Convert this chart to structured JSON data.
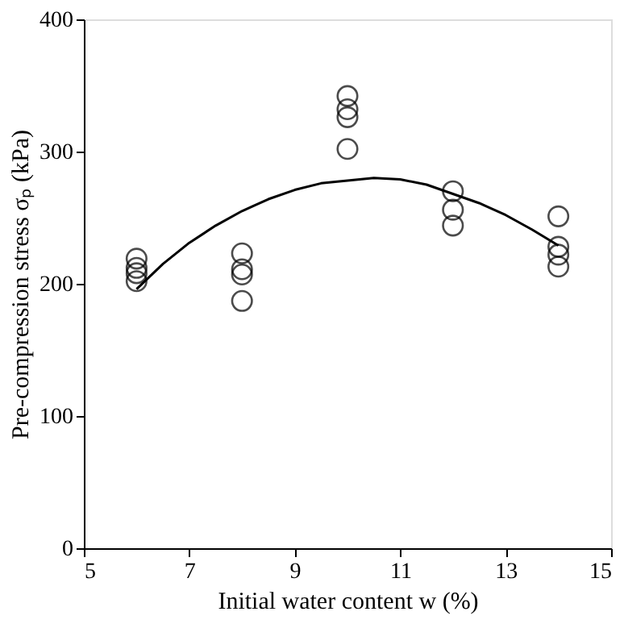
{
  "chart_data": {
    "type": "scatter",
    "xlabel": "Initial water content w (%)",
    "ylabel": "Pre-compression stress σₚ (kPa)",
    "xlim": [
      5,
      15
    ],
    "xticks": [
      5,
      7,
      9,
      11,
      13,
      15
    ],
    "ylim": [
      0,
      400
    ],
    "yticks": [
      0,
      100,
      200,
      300,
      400
    ],
    "grid": false,
    "series": [
      {
        "marker": "circle",
        "color": "#000000",
        "x": [
          6,
          6,
          6,
          6,
          8,
          8,
          8,
          8,
          10,
          10,
          10,
          10,
          12,
          12,
          12,
          14,
          14,
          14,
          14
        ],
        "values": [
          219,
          212,
          208,
          202,
          223,
          211,
          207,
          187,
          342,
          332,
          326,
          302,
          270,
          256,
          244,
          251,
          228,
          222,
          213
        ]
      },
      {
        "type": "line",
        "marker": "none",
        "line_style": "solid",
        "color": "#000000",
        "x": [
          6,
          6.5,
          7,
          7.5,
          8,
          8.5,
          9,
          9.5,
          10,
          10.5,
          11,
          11.5,
          12,
          12.5,
          13,
          13.5,
          14
        ],
        "values": [
          196,
          215,
          231,
          244,
          255,
          264,
          271,
          276,
          278,
          280,
          279,
          275,
          268,
          261,
          252,
          241,
          229
        ]
      }
    ]
  }
}
